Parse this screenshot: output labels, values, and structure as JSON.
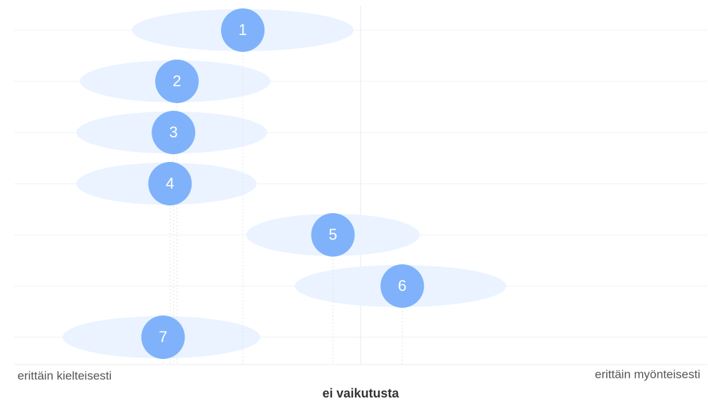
{
  "chart_data": {
    "type": "range-dot",
    "categories": [
      "1",
      "2",
      "3",
      "4",
      "5",
      "6",
      "7"
    ],
    "values": [
      -0.34,
      -0.53,
      -0.54,
      -0.55,
      -0.08,
      0.12,
      -0.57
    ],
    "ranges": [
      [
        -0.66,
        -0.02
      ],
      [
        -0.81,
        -0.26
      ],
      [
        -0.82,
        -0.27
      ],
      [
        -0.82,
        -0.3
      ],
      [
        -0.33,
        0.17
      ],
      [
        -0.19,
        0.42
      ],
      [
        -0.86,
        -0.29
      ]
    ],
    "color": "#7fb2fb",
    "range_color": "#eaf3ff",
    "xlim": [
      -1,
      1
    ],
    "xticks": [
      {
        "value": -1,
        "label": "erittäin kielteisesti"
      },
      {
        "value": 0,
        "label": "ei vaikutusta"
      },
      {
        "value": 1,
        "label": "erittäin myönteisesti"
      }
    ],
    "grid": true
  }
}
